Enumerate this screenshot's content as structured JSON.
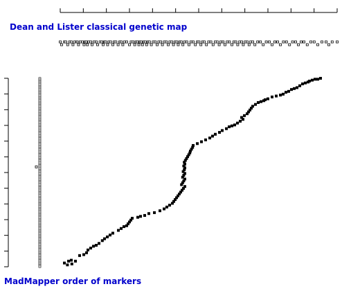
{
  "colors": {
    "background": "#ffffff",
    "axis": "#000000",
    "title_text": "#0000cc"
  },
  "chart_data": {
    "type": "scatter",
    "title": "Dean and Lister classical genetic map",
    "ylabel": "MadMapper order of markers",
    "xlabel": "",
    "x_axis_ticks": 13,
    "y_axis_ticks": 13,
    "x_rug": [
      0.0,
      0.5,
      1.5,
      2.0,
      2.7,
      3.4,
      4.0,
      4.6,
      5.2,
      6.1,
      6.6,
      7.2,
      8.0,
      8.6,
      9.0,
      9.4,
      9.8,
      10.3,
      11.0,
      11.5,
      12.2,
      13.0,
      13.5,
      14.4,
      15.0,
      15.5,
      16.0,
      16.4,
      17.1,
      17.6,
      18.2,
      19.0,
      19.5,
      20.1,
      20.9,
      21.5,
      22.0,
      22.6,
      23.2,
      24.0,
      25.0,
      25.6,
      26.3,
      26.9,
      27.4,
      27.9,
      28.4,
      28.8,
      29.2,
      29.7,
      30.2,
      30.7,
      31.2,
      31.7,
      32.2,
      32.9,
      33.6,
      34.3,
      35.0,
      35.6,
      36.3,
      36.9,
      37.6,
      38.3,
      39.0,
      39.6,
      40.3,
      40.9,
      41.5,
      42.1,
      42.6,
      43.2,
      43.7,
      44.3,
      44.9,
      45.7,
      46.5,
      47.2,
      48.0,
      48.8,
      49.5,
      50.1,
      50.8,
      51.4,
      52.0,
      52.8,
      53.6,
      54.4,
      55.2,
      56.0,
      56.7,
      57.4,
      58.0,
      58.8,
      59.5,
      60.3,
      61.1,
      62.0,
      62.7,
      63.4,
      64.1,
      64.8,
      65.5,
      66.1,
      66.8,
      67.5,
      68.2,
      68.8,
      69.5,
      70.3,
      71.3,
      72.3,
      73.3,
      74.4,
      75.5,
      76.5,
      77.5,
      78.5,
      79.5,
      80.6,
      81.7,
      82.8,
      83.9,
      85.0,
      86.0,
      87.0,
      88.0,
      89.2,
      90.5,
      91.7,
      93.0,
      94.5,
      96.0,
      97.0,
      98.2,
      100.0
    ],
    "y_rug_count": 120,
    "y_rug_outlier": 0.47,
    "points": [
      [
        1.5,
        2
      ],
      [
        2.6,
        1
      ],
      [
        3.0,
        3
      ],
      [
        4.0,
        3.5
      ],
      [
        4.2,
        1.5
      ],
      [
        5.5,
        3
      ],
      [
        7.0,
        6
      ],
      [
        8.5,
        6.5
      ],
      [
        9.5,
        7.5
      ],
      [
        10.0,
        9
      ],
      [
        11.0,
        10
      ],
      [
        12.0,
        11
      ],
      [
        13.0,
        11.5
      ],
      [
        14.0,
        12.5
      ],
      [
        15.2,
        14
      ],
      [
        16.0,
        15
      ],
      [
        17.0,
        16
      ],
      [
        18.0,
        17
      ],
      [
        19.0,
        18
      ],
      [
        21.0,
        19.5
      ],
      [
        22.0,
        20.5
      ],
      [
        23.0,
        21.5
      ],
      [
        24.0,
        22
      ],
      [
        24.5,
        23
      ],
      [
        25.0,
        24
      ],
      [
        25.5,
        25
      ],
      [
        26.0,
        26
      ],
      [
        28.0,
        26.5
      ],
      [
        29.0,
        27
      ],
      [
        30.5,
        27.5
      ],
      [
        32.0,
        28.5
      ],
      [
        34.0,
        29
      ],
      [
        36.0,
        30
      ],
      [
        37.5,
        31
      ],
      [
        38.5,
        32
      ],
      [
        39.5,
        33
      ],
      [
        40.5,
        34
      ],
      [
        41.0,
        35
      ],
      [
        41.5,
        36
      ],
      [
        42.0,
        37
      ],
      [
        42.5,
        38
      ],
      [
        43.0,
        39
      ],
      [
        43.5,
        40
      ],
      [
        44.0,
        41
      ],
      [
        44.5,
        42
      ],
      [
        45.0,
        43
      ],
      [
        43.8,
        44
      ],
      [
        44.2,
        45
      ],
      [
        44.6,
        46
      ],
      [
        45.0,
        47
      ],
      [
        44.2,
        48
      ],
      [
        44.6,
        49
      ],
      [
        45.0,
        50
      ],
      [
        44.4,
        51
      ],
      [
        44.8,
        52
      ],
      [
        45.0,
        53
      ],
      [
        44.6,
        54
      ],
      [
        45.0,
        55
      ],
      [
        44.8,
        56
      ],
      [
        45.2,
        57
      ],
      [
        45.6,
        58
      ],
      [
        46.0,
        59
      ],
      [
        46.4,
        60
      ],
      [
        46.8,
        61
      ],
      [
        47.0,
        62
      ],
      [
        47.4,
        63
      ],
      [
        47.8,
        64
      ],
      [
        48.0,
        65
      ],
      [
        49.5,
        66
      ],
      [
        51.0,
        67
      ],
      [
        52.5,
        68
      ],
      [
        54.0,
        69
      ],
      [
        55.0,
        70
      ],
      [
        56.0,
        71
      ],
      [
        57.5,
        72
      ],
      [
        58.5,
        73
      ],
      [
        60.0,
        74
      ],
      [
        61.0,
        75
      ],
      [
        62.0,
        75.5
      ],
      [
        63.0,
        76
      ],
      [
        64.0,
        77
      ],
      [
        65.0,
        78
      ],
      [
        66.0,
        79
      ],
      [
        65.5,
        80
      ],
      [
        66.5,
        81
      ],
      [
        67.5,
        82
      ],
      [
        68.0,
        83
      ],
      [
        68.5,
        84
      ],
      [
        69.0,
        85
      ],
      [
        69.5,
        86
      ],
      [
        70.5,
        87
      ],
      [
        71.5,
        88
      ],
      [
        72.5,
        88.5
      ],
      [
        73.5,
        89
      ],
      [
        74.0,
        89.5
      ],
      [
        75.0,
        90
      ],
      [
        76.5,
        91
      ],
      [
        78.0,
        91.5
      ],
      [
        79.5,
        92
      ],
      [
        80.5,
        92.5
      ],
      [
        81.5,
        93.5
      ],
      [
        82.5,
        94
      ],
      [
        83.5,
        95
      ],
      [
        84.5,
        95.5
      ],
      [
        85.5,
        96
      ],
      [
        86.5,
        97
      ],
      [
        87.5,
        98
      ],
      [
        88.5,
        98.5
      ],
      [
        89.5,
        99
      ],
      [
        90.0,
        99.5
      ],
      [
        91.0,
        100
      ],
      [
        92.0,
        100.5
      ],
      [
        93.0,
        100.5
      ],
      [
        94.0,
        101
      ]
    ]
  }
}
